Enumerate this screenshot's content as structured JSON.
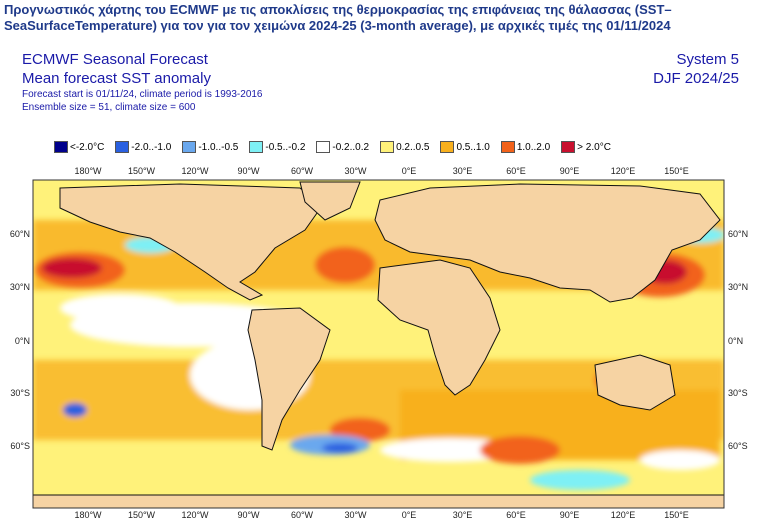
{
  "caption": "Προγνωστικός χάρτης του ECMWF με τις αποκλίσεις της θερμοκρασίας της επιφάνειας της θάλασσας (SST–SeaSurfaceTemperature) για τον για τον χειμώνα 2024-25 (3-month average), με αρχικές τιμές της 01/11/2024",
  "header": {
    "title": "ECMWF Seasonal Forecast",
    "subtitle": "Mean forecast SST anomaly",
    "info_line1": "Forecast start is 01/11/24, climate period is 1993-2016",
    "info_line2": "Ensemble size = 51, climate size = 600",
    "system": "System 5",
    "season": "DJF 2024/25"
  },
  "legend": [
    {
      "label": "<-2.0°C",
      "color": "#00008b"
    },
    {
      "label": "-2.0..-1.0",
      "color": "#2a60e0"
    },
    {
      "label": "-1.0..-0.5",
      "color": "#6aa8ee"
    },
    {
      "label": "-0.5..-0.2",
      "color": "#7ef0f5"
    },
    {
      "label": "-0.2..0.2",
      "color": "#ffffff"
    },
    {
      "label": "0.2..0.5",
      "color": "#fff27a"
    },
    {
      "label": "0.5..1.0",
      "color": "#f8b01e"
    },
    {
      "label": "1.0..2.0",
      "color": "#f2621a"
    },
    {
      "label": "> 2.0°C",
      "color": "#c8102e"
    }
  ],
  "map": {
    "land_color": "#f6d3a3",
    "lon_ticks": [
      "180°W",
      "150°W",
      "120°W",
      "90°W",
      "60°W",
      "30°W",
      "0°E",
      "30°E",
      "60°E",
      "90°E",
      "120°E",
      "150°E"
    ],
    "lat_ticks": [
      "60°N",
      "30°N",
      "0°N",
      "30°S",
      "60°S"
    ]
  }
}
